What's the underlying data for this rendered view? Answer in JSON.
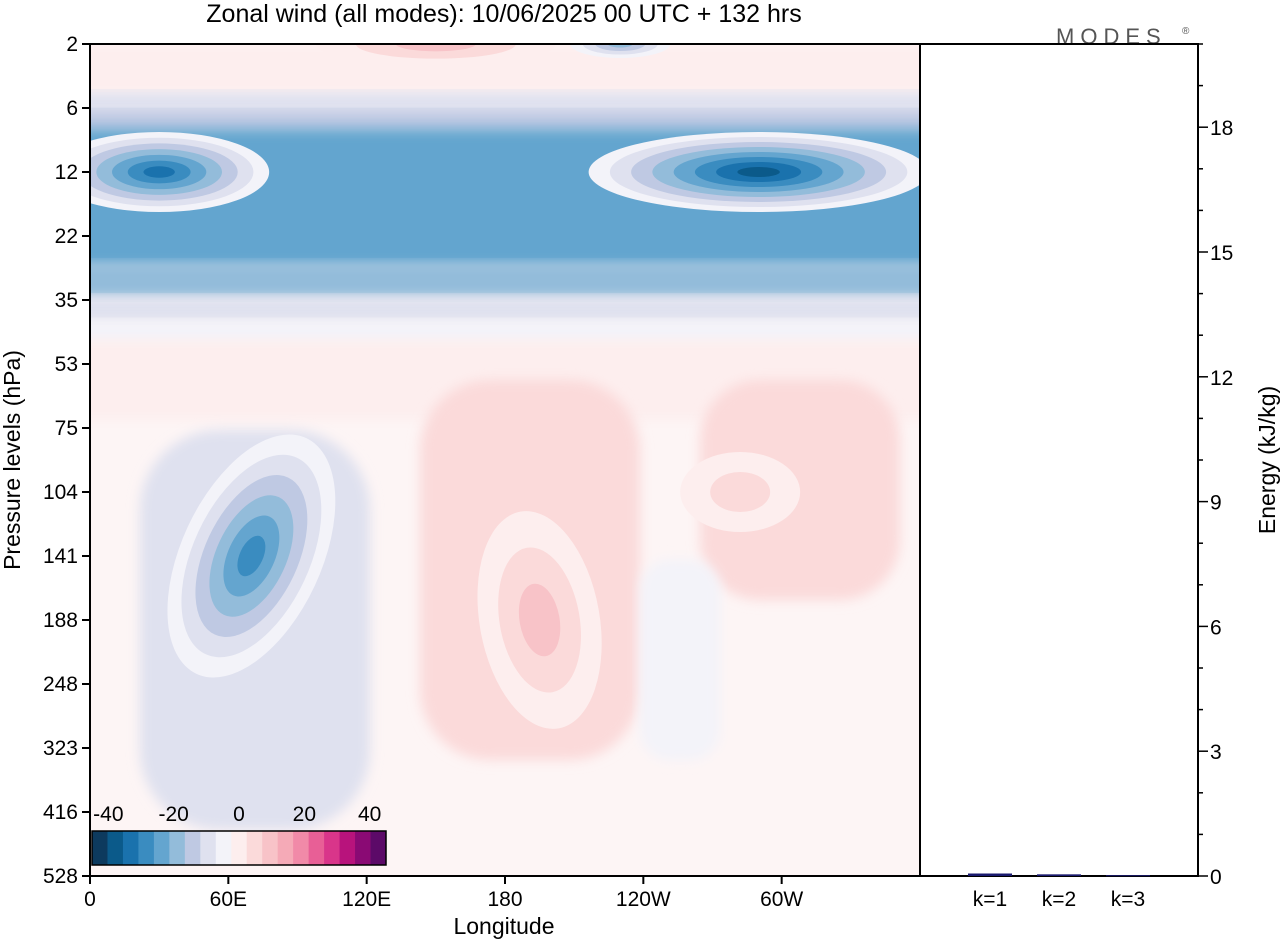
{
  "title": "Zonal wind (all modes):  10/06/2025  00 UTC  + 132 hrs",
  "logo": "MODES",
  "logo_mark": "®",
  "chart_data": [
    {
      "type": "heatmap",
      "title": "Zonal wind (all modes):  10/06/2025  00 UTC  + 132 hrs",
      "xlabel": "Longitude",
      "ylabel": "Pressure levels (hPa)",
      "x_ticks": [
        "0",
        "60E",
        "120E",
        "180",
        "120W",
        "60W"
      ],
      "x_tick_lon": [
        0,
        60,
        120,
        180,
        240,
        300
      ],
      "xlim": [
        0,
        360
      ],
      "y_ticks": [
        "2",
        "6",
        "12",
        "22",
        "35",
        "53",
        "75",
        "104",
        "141",
        "188",
        "248",
        "323",
        "416",
        "528"
      ],
      "ylim": [
        "2",
        "528"
      ],
      "colorbar": {
        "ticks": [
          "-40",
          "-20",
          "0",
          "20",
          "40"
        ],
        "range": [
          -45,
          45
        ],
        "step": 5,
        "colors": [
          "#0d3a5e",
          "#0b5a8a",
          "#1a72ad",
          "#3a8cc0",
          "#64a5cf",
          "#93bcda",
          "#bfc9e3",
          "#dfe1ef",
          "#f3f3f9",
          "#fdeeee",
          "#fbdada",
          "#f8c3c8",
          "#f5aab7",
          "#f18aa8",
          "#e85f96",
          "#d9358a",
          "#b8137c",
          "#8a0a74",
          "#5c0a68"
        ]
      },
      "features": [
        {
          "lon": 70,
          "level": "141",
          "value": -32
        },
        {
          "lon": 290,
          "level": "12",
          "value": -40
        },
        {
          "lon": 30,
          "level": "12",
          "value": -35
        },
        {
          "lon": 195,
          "level": "188",
          "value": 15
        },
        {
          "lon": 282,
          "level": "104",
          "value": 10
        },
        {
          "lon": 150,
          "level": "2",
          "value": 13
        },
        {
          "lon": 230,
          "level": "2",
          "value": -20
        }
      ]
    },
    {
      "type": "bar",
      "ylabel": "Energy (kJ/kg)",
      "categories": [
        "k=1",
        "k=2",
        "k=3"
      ],
      "values": [
        0.06,
        0.04,
        0.02
      ],
      "ylim": [
        0,
        20
      ],
      "y_ticks": [
        "0",
        "3",
        "6",
        "9",
        "12",
        "15",
        "18"
      ],
      "bar_color": "#1a1a6e"
    }
  ]
}
